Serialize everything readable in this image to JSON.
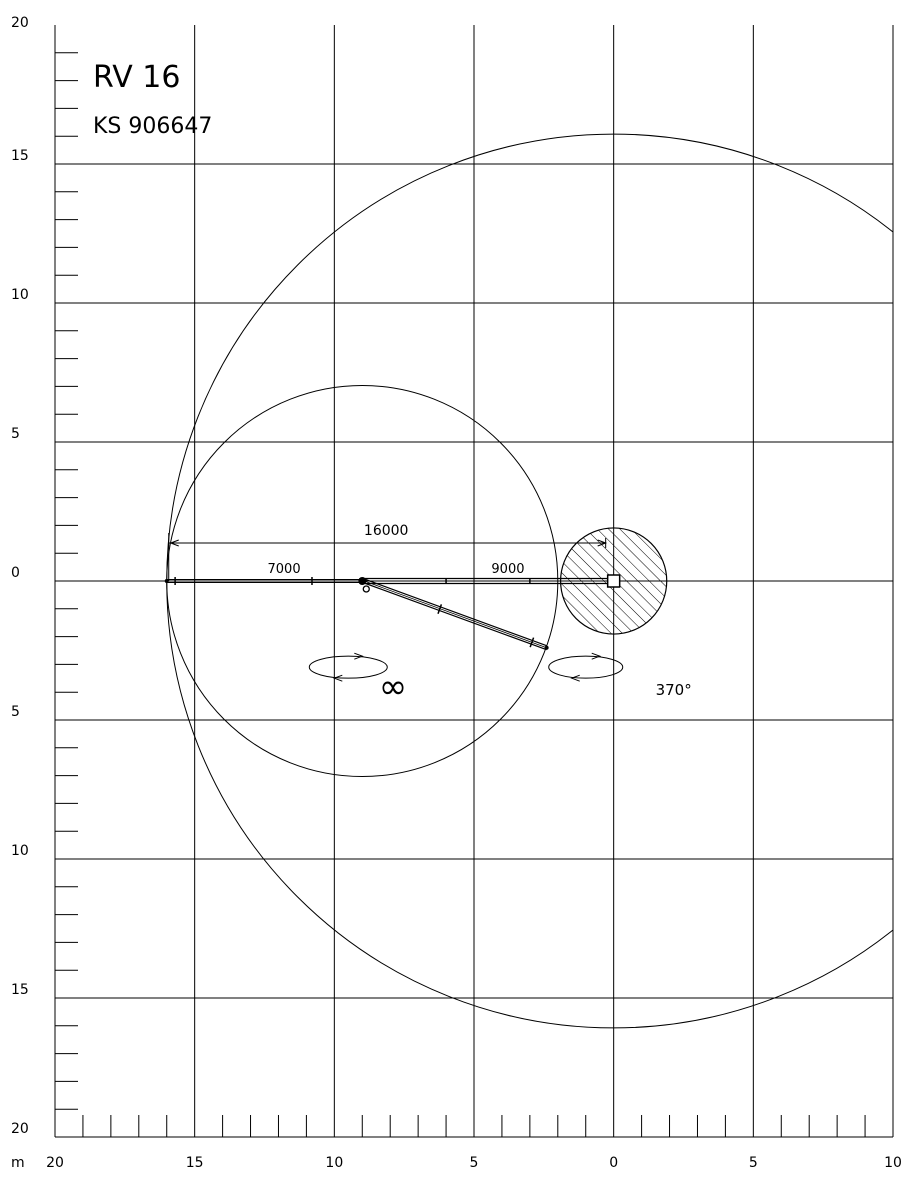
{
  "title": {
    "model": "RV 16",
    "code": "KS 906647"
  },
  "axis": {
    "unit": "m",
    "x_ticks": [
      {
        "label": "20",
        "value": -20
      },
      {
        "label": "15",
        "value": -15
      },
      {
        "label": "10",
        "value": -10
      },
      {
        "label": "5",
        "value": -5
      },
      {
        "label": "0",
        "value": 0
      },
      {
        "label": "5",
        "value": 5
      },
      {
        "label": "10",
        "value": 10
      }
    ],
    "y_ticks": [
      {
        "label": "20",
        "value": 20
      },
      {
        "label": "15",
        "value": 15
      },
      {
        "label": "10",
        "value": 10
      },
      {
        "label": "5",
        "value": 5
      },
      {
        "label": "0",
        "value": 0
      },
      {
        "label": "5",
        "value": -5
      },
      {
        "label": "10",
        "value": -10
      },
      {
        "label": "15",
        "value": -15
      },
      {
        "label": "20",
        "value": -20
      }
    ],
    "x_range": [
      -20,
      10
    ],
    "y_range": [
      -20,
      20
    ],
    "grid_step": 5,
    "minor_step": 1
  },
  "reach": {
    "outer_radius": 16,
    "secondary_radius": 7,
    "secondary_center": [
      -9,
      0
    ],
    "base_radius": 1.9
  },
  "boom": {
    "first_arm": {
      "label": "9000",
      "length": 9
    },
    "second_arm": {
      "label": "7000",
      "length": 7
    },
    "total": {
      "label": "16000",
      "length": 16
    },
    "folded_tip": [
      -2.4,
      -2.4
    ]
  },
  "rotation": {
    "main_label": "370°",
    "second_label": "∞"
  }
}
